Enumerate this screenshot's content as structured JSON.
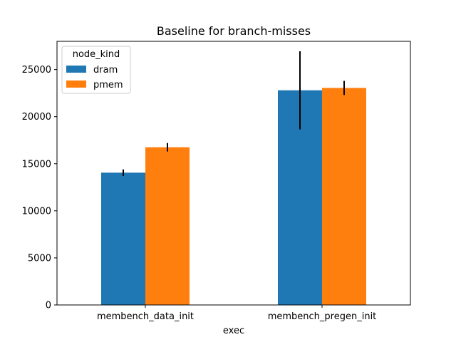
{
  "chart_data": {
    "type": "bar",
    "title": "Baseline for branch-misses",
    "xlabel": "exec",
    "ylabel": "",
    "categories": [
      "membench_data_init",
      "membench_pregen_init"
    ],
    "series": [
      {
        "name": "dram",
        "color": "#1f77b4",
        "values": [
          14050,
          22800
        ],
        "err": [
          350,
          4150
        ]
      },
      {
        "name": "pmem",
        "color": "#ff7f0e",
        "values": [
          16750,
          23050
        ],
        "err": [
          450,
          750
        ]
      }
    ],
    "ylim": [
      0,
      28000
    ],
    "yticks": [
      0,
      5000,
      10000,
      15000,
      20000,
      25000
    ],
    "grid": false,
    "legend": {
      "title": "node_kind",
      "placement": "top-left"
    }
  }
}
